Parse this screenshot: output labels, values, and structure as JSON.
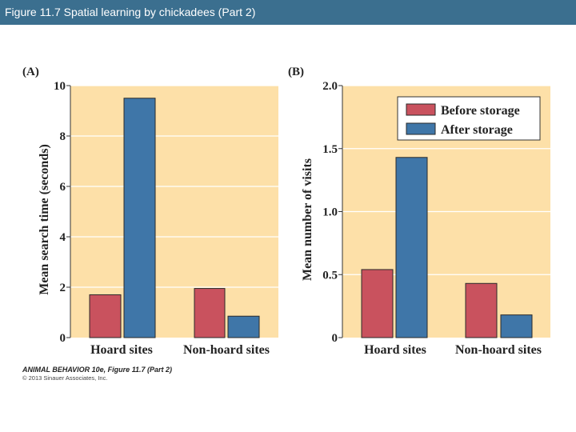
{
  "slide": {
    "title": "Figure 11.7  Spatial learning by chickadees (Part 2)",
    "credit_line1": "ANIMAL BEHAVIOR 10e, Figure 11.7 (Part 2)",
    "credit_line2": "© 2013 Sinauer Associates, Inc."
  },
  "colors": {
    "title_bar": "#3b6f8f",
    "plot_bg": "#fde0a8",
    "before": "#c9525e",
    "after": "#3f76a8"
  },
  "chart_data": [
    {
      "type": "bar",
      "panel_label": "(A)",
      "categories": [
        "Hoard sites",
        "Non-hoard sites"
      ],
      "series": [
        {
          "values": [
            1.7,
            1.95
          ]
        },
        {
          "values": [
            9.5,
            0.85
          ]
        }
      ],
      "xlabel": "",
      "ylabel": "Mean search time (seconds)",
      "ylim": [
        0,
        10
      ],
      "yticks": [
        "0",
        "2",
        "4",
        "6",
        "8",
        "10"
      ],
      "ytick_values": [
        0,
        2,
        4,
        6,
        8,
        10
      ],
      "grid": true
    },
    {
      "type": "bar",
      "panel_label": "(B)",
      "categories": [
        "Hoard sites",
        "Non-hoard sites"
      ],
      "series": [
        {
          "name": "Before storage",
          "values": [
            0.54,
            0.43
          ]
        },
        {
          "name": "After storage",
          "values": [
            1.43,
            0.18
          ]
        }
      ],
      "xlabel": "",
      "ylabel": "Mean number of visits",
      "ylim": [
        0,
        2.0
      ],
      "yticks": [
        "0",
        "0.5",
        "1.0",
        "1.5",
        "2.0"
      ],
      "ytick_values": [
        0,
        0.5,
        1.0,
        1.5,
        2.0
      ],
      "legend_position": "top-right",
      "grid": true
    }
  ]
}
